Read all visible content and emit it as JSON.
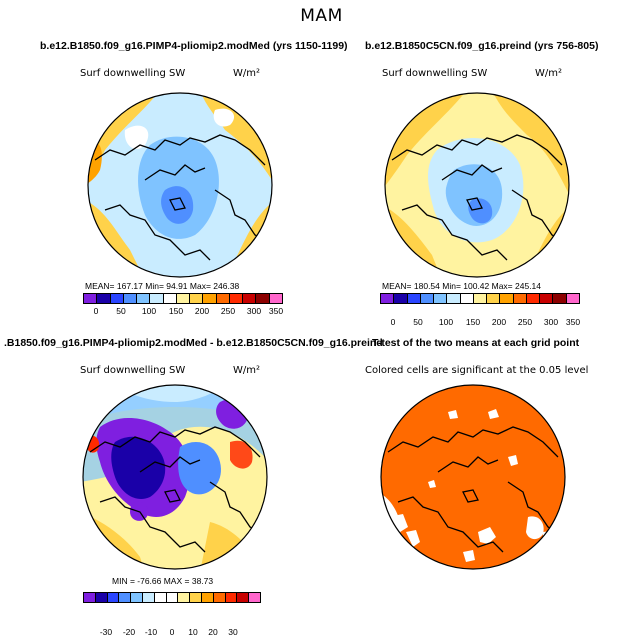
{
  "title": "MAM",
  "panels": {
    "top_left": {
      "title": "b.e12.B1850.f09_g16.PIMP4-pliomip2.modMed (yrs 1150-1199)",
      "variable": "Surf downwelling SW",
      "units": "W/m²",
      "stats": "MEAN= 167.17   Min=  94.91   Max= 246.38",
      "colorbar_ticks": [
        "0",
        "50",
        "100",
        "150",
        "200",
        "250",
        "300",
        "350"
      ]
    },
    "top_right": {
      "title": "b.e12.B1850C5CN.f09_g16.preind (yrs 756-805)",
      "variable": "Surf downwelling SW",
      "units": "W/m²",
      "stats": "MEAN= 180.54   Min= 100.42   Max= 245.14",
      "colorbar_ticks": [
        "0",
        "50",
        "100",
        "150",
        "200",
        "250",
        "300",
        "350"
      ]
    },
    "bottom_left": {
      "title": ".B1850.f09_g16.PIMP4-pliomip2.modMed - b.e12.B1850C5CN.f09_g16.preind",
      "variable": "Surf downwelling SW",
      "units": "W/m²",
      "stats": "MIN = -76.66  MAX =  38.73",
      "colorbar_ticks": [
        "-30",
        "-20",
        "-10",
        "0",
        "10",
        "20",
        "30"
      ]
    },
    "bottom_right": {
      "title": "T-test of the two means at each grid point",
      "note": "Colored cells are significant at the 0.05 level"
    }
  },
  "colors": {
    "abs_scale": [
      "#7f1fe0",
      "#1a00a8",
      "#2a45ff",
      "#4f8fff",
      "#7fc3ff",
      "#c9ecff",
      "#ffffff",
      "#fff3a0",
      "#ffd24a",
      "#ffa200",
      "#ff6a00",
      "#ff2a00",
      "#c80000",
      "#8c0000",
      "#ff66cc"
    ],
    "diff_scale": [
      "#7f1fe0",
      "#1a00a8",
      "#2a45ff",
      "#4f8fff",
      "#7fc3ff",
      "#c9ecff",
      "#ffffff",
      "#ffffff",
      "#fff3a0",
      "#ffd24a",
      "#ffa200",
      "#ff6a00",
      "#ff2a00",
      "#c80000",
      "#ff66cc"
    ],
    "significant": "#ff6a00"
  }
}
